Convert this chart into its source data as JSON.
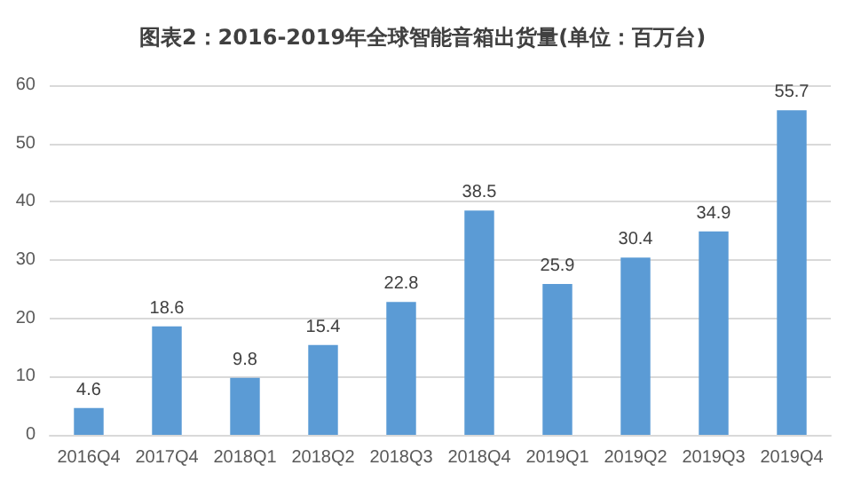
{
  "chart_data": {
    "type": "bar",
    "title": "图表2：2016-2019年全球智能音箱出货量(单位：百万台)",
    "categories": [
      "2016Q4",
      "2017Q4",
      "2018Q1",
      "2018Q2",
      "2018Q3",
      "2018Q4",
      "2019Q1",
      "2019Q2",
      "2019Q3",
      "2019Q4"
    ],
    "values": [
      4.6,
      18.6,
      9.8,
      15.4,
      22.8,
      38.5,
      25.9,
      30.4,
      34.9,
      55.7
    ],
    "color": "#5b9bd5",
    "ylim": [
      0,
      60
    ],
    "yticks": [
      0,
      10,
      20,
      30,
      40,
      50,
      60
    ],
    "grid": "y",
    "data_labels": true
  }
}
